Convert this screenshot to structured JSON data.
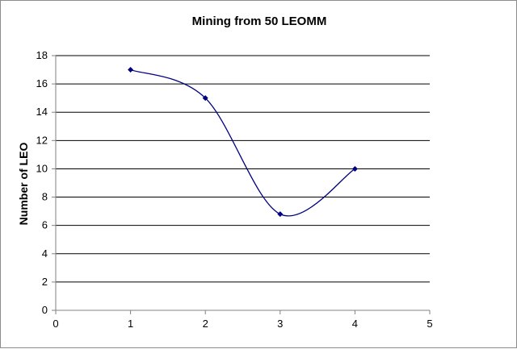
{
  "chart_data": {
    "type": "line",
    "title": "Mining from 50 LEOMM",
    "xlabel": "",
    "ylabel": "Number of LEO",
    "xlim": [
      0,
      5
    ],
    "ylim": [
      0,
      18
    ],
    "xticks": [
      0,
      1,
      2,
      3,
      4,
      5
    ],
    "yticks": [
      0,
      2,
      4,
      6,
      8,
      10,
      12,
      14,
      16,
      18
    ],
    "grid": "horizontal",
    "smoothed": true,
    "series": [
      {
        "color": "#000080",
        "x": [
          1,
          2,
          3,
          4
        ],
        "y": [
          17,
          15,
          6.8,
          10
        ]
      }
    ]
  }
}
